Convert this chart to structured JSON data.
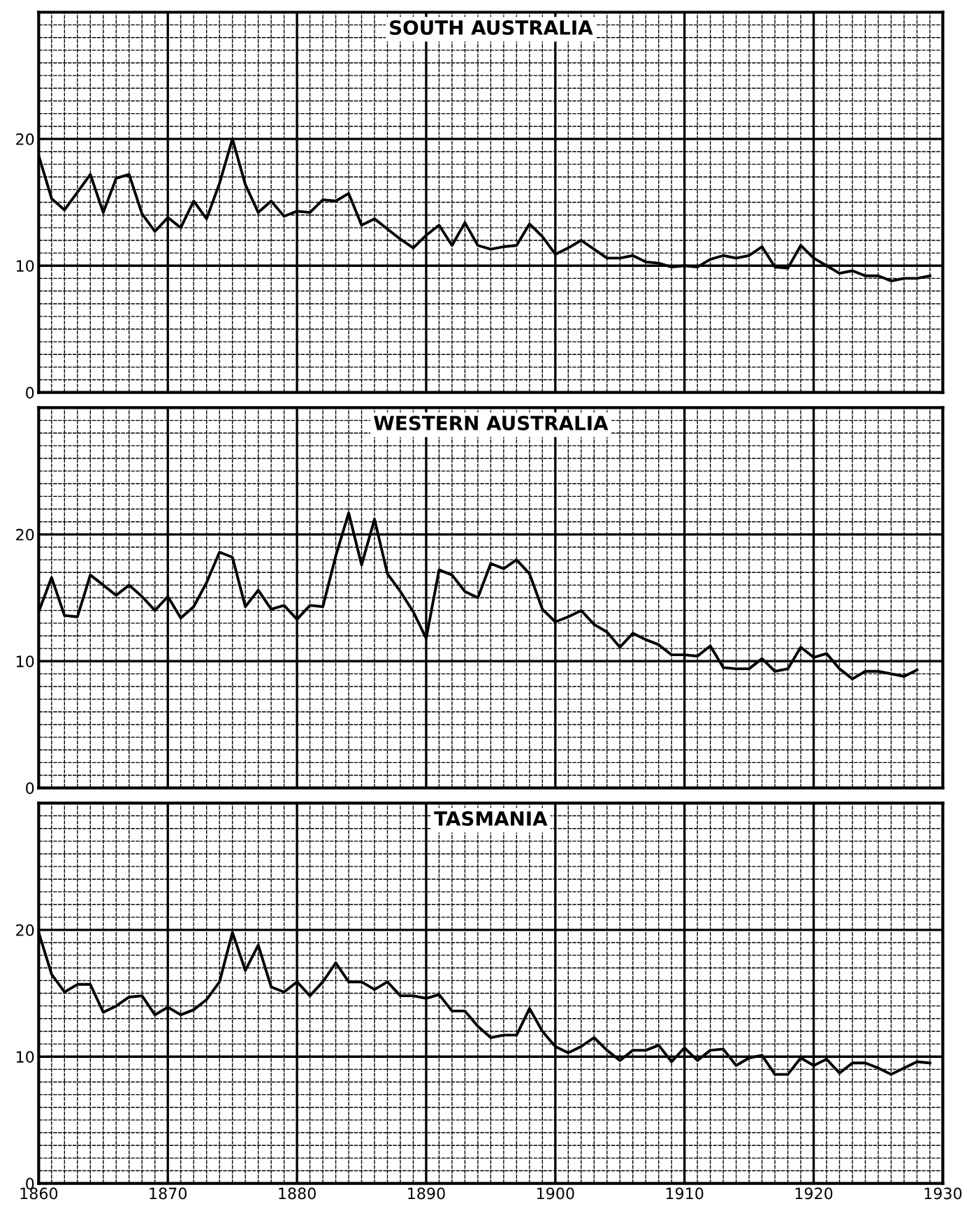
{
  "chart_data": [
    {
      "type": "line",
      "title": "SOUTH AUSTRALIA",
      "x": [
        1860,
        1861,
        1862,
        1863,
        1864,
        1865,
        1866,
        1867,
        1868,
        1869,
        1870,
        1871,
        1872,
        1873,
        1874,
        1875,
        1876,
        1877,
        1878,
        1879,
        1880,
        1881,
        1882,
        1883,
        1884,
        1885,
        1886,
        1887,
        1888,
        1889,
        1890,
        1891,
        1892,
        1893,
        1894,
        1895,
        1896,
        1897,
        1898,
        1899,
        1900,
        1901,
        1902,
        1903,
        1904,
        1905,
        1906,
        1907,
        1908,
        1909,
        1910,
        1911,
        1912,
        1913,
        1914,
        1915,
        1916,
        1917,
        1918,
        1919,
        1920,
        1921,
        1922,
        1923,
        1924,
        1925,
        1926,
        1927,
        1928,
        1929
      ],
      "series": [
        {
          "color": "#000000",
          "values": [
            18.7,
            15.3,
            14.4,
            15.8,
            17.2,
            14.2,
            16.9,
            17.2,
            14.1,
            12.7,
            13.8,
            13.0,
            15.1,
            13.7,
            16.5,
            20.0,
            16.4,
            14.2,
            15.1,
            13.9,
            14.3,
            14.2,
            15.2,
            15.1,
            15.7,
            13.2,
            13.7,
            12.9,
            12.1,
            11.4,
            12.4,
            13.2,
            11.6,
            13.4,
            11.6,
            11.3,
            11.5,
            11.6,
            13.3,
            12.3,
            10.9,
            11.4,
            12.0,
            11.3,
            10.6,
            10.6,
            10.8,
            10.3,
            10.2,
            9.9,
            10.0,
            9.9,
            10.5,
            10.8,
            10.6,
            10.8,
            11.5,
            9.9,
            9.8,
            11.6,
            10.6,
            10.0,
            9.4,
            9.6,
            9.2,
            9.2,
            8.8,
            9.0,
            9.0,
            9.2
          ]
        }
      ],
      "xlim": [
        1860,
        1930
      ],
      "xticks": [
        1860,
        1870,
        1880,
        1890,
        1900,
        1910,
        1920,
        1930
      ],
      "ylim": [
        0,
        30
      ],
      "yticks": [
        0,
        10,
        20
      ],
      "grid": true,
      "tick_labels": "y",
      "marker": "none",
      "line_style": "solid"
    },
    {
      "type": "line",
      "title": "WESTERN AUSTRALIA",
      "x": [
        1860,
        1861,
        1862,
        1863,
        1864,
        1865,
        1866,
        1867,
        1868,
        1869,
        1870,
        1871,
        1872,
        1873,
        1874,
        1875,
        1876,
        1877,
        1878,
        1879,
        1880,
        1881,
        1882,
        1883,
        1884,
        1885,
        1886,
        1887,
        1888,
        1889,
        1890,
        1891,
        1892,
        1893,
        1894,
        1895,
        1896,
        1897,
        1898,
        1899,
        1900,
        1901,
        1902,
        1903,
        1904,
        1905,
        1906,
        1907,
        1908,
        1909,
        1910,
        1911,
        1912,
        1913,
        1914,
        1915,
        1916,
        1917,
        1918,
        1919,
        1920,
        1921,
        1922,
        1923,
        1924,
        1925,
        1926,
        1927,
        1928
      ],
      "series": [
        {
          "color": "#000000",
          "values": [
            13.9,
            16.6,
            13.6,
            13.5,
            16.8,
            16.0,
            15.2,
            16.0,
            15.1,
            14.0,
            15.1,
            13.4,
            14.3,
            16.2,
            18.6,
            18.2,
            14.3,
            15.6,
            14.1,
            14.4,
            13.3,
            14.4,
            14.3,
            18.3,
            21.7,
            17.6,
            21.2,
            16.9,
            15.5,
            13.9,
            11.8,
            17.2,
            16.8,
            15.5,
            15.0,
            17.7,
            17.3,
            18.0,
            16.9,
            14.1,
            13.1,
            13.5,
            14.0,
            12.9,
            12.3,
            11.1,
            12.2,
            11.7,
            11.3,
            10.5,
            10.5,
            10.4,
            11.2,
            9.5,
            9.4,
            9.4,
            10.2,
            9.2,
            9.4,
            11.1,
            10.3,
            10.6,
            9.4,
            8.6,
            9.2,
            9.2,
            9.0,
            8.8,
            9.3
          ]
        }
      ],
      "xlim": [
        1860,
        1930
      ],
      "xticks": [
        1860,
        1870,
        1880,
        1890,
        1900,
        1910,
        1920,
        1930
      ],
      "ylim": [
        0,
        30
      ],
      "yticks": [
        0,
        10,
        20
      ],
      "grid": true,
      "tick_labels": "y",
      "marker": "none",
      "line_style": "solid"
    },
    {
      "type": "line",
      "title": "TASMANIA",
      "x": [
        1860,
        1861,
        1862,
        1863,
        1864,
        1865,
        1866,
        1867,
        1868,
        1869,
        1870,
        1871,
        1872,
        1873,
        1874,
        1875,
        1876,
        1877,
        1878,
        1879,
        1880,
        1881,
        1882,
        1883,
        1884,
        1885,
        1886,
        1887,
        1888,
        1889,
        1890,
        1891,
        1892,
        1893,
        1894,
        1895,
        1896,
        1897,
        1898,
        1899,
        1900,
        1901,
        1902,
        1903,
        1904,
        1905,
        1906,
        1907,
        1908,
        1909,
        1910,
        1911,
        1912,
        1913,
        1914,
        1915,
        1916,
        1917,
        1918,
        1919,
        1920,
        1921,
        1922,
        1923,
        1924,
        1925,
        1926,
        1927,
        1928,
        1929
      ],
      "series": [
        {
          "color": "#000000",
          "values": [
            19.8,
            16.5,
            15.1,
            15.7,
            15.7,
            13.5,
            14.0,
            14.7,
            14.8,
            13.3,
            13.9,
            13.3,
            13.7,
            14.5,
            15.9,
            19.8,
            16.8,
            18.8,
            15.5,
            15.1,
            15.9,
            14.8,
            15.9,
            17.4,
            15.9,
            15.9,
            15.3,
            15.9,
            14.8,
            14.8,
            14.6,
            14.9,
            13.6,
            13.6,
            12.4,
            11.5,
            11.7,
            11.7,
            13.8,
            12.0,
            10.8,
            10.3,
            10.8,
            11.5,
            10.5,
            9.7,
            10.5,
            10.5,
            10.9,
            9.6,
            10.7,
            9.7,
            10.5,
            10.6,
            9.3,
            9.9,
            10.1,
            8.6,
            8.6,
            9.9,
            9.3,
            9.8,
            8.7,
            9.5,
            9.5,
            9.1,
            8.6,
            9.1,
            9.6,
            9.5
          ]
        }
      ],
      "xlim": [
        1860,
        1930
      ],
      "xticks": [
        1860,
        1870,
        1880,
        1890,
        1900,
        1910,
        1920,
        1930
      ],
      "ylim": [
        0,
        30
      ],
      "yticks": [
        0,
        10,
        20
      ],
      "grid": true,
      "marker": "none",
      "line_style": "solid"
    }
  ]
}
